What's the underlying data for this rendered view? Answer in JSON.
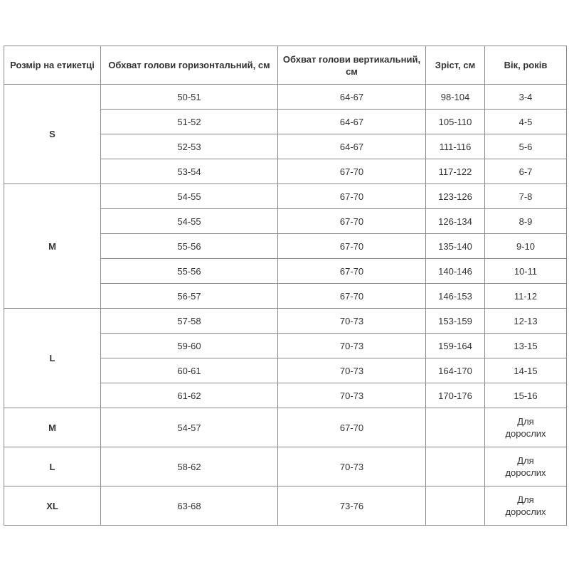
{
  "headers": [
    "Розмір на етикетці",
    "Обхват голови горизонтальний, см",
    "Обхват голови вертикальний, см",
    "Зріст, см",
    "Вік, років"
  ],
  "groups": [
    {
      "size": "S",
      "rows": [
        [
          "50-51",
          "64-67",
          "98-104",
          "3-4"
        ],
        [
          "51-52",
          "64-67",
          "105-110",
          "4-5"
        ],
        [
          "52-53",
          "64-67",
          "111-116",
          "5-6"
        ],
        [
          "53-54",
          "67-70",
          "117-122",
          "6-7"
        ]
      ]
    },
    {
      "size": "M",
      "rows": [
        [
          "54-55",
          "67-70",
          "123-126",
          "7-8"
        ],
        [
          "54-55",
          "67-70",
          "126-134",
          "8-9"
        ],
        [
          "55-56",
          "67-70",
          "135-140",
          "9-10"
        ],
        [
          "55-56",
          "67-70",
          "140-146",
          "10-11"
        ],
        [
          "56-57",
          "67-70",
          "146-153",
          "11-12"
        ]
      ]
    },
    {
      "size": "L",
      "rows": [
        [
          "57-58",
          "70-73",
          "153-159",
          "12-13"
        ],
        [
          "59-60",
          "70-73",
          "159-164",
          "13-15"
        ],
        [
          "60-61",
          "70-73",
          "164-170",
          "14-15"
        ],
        [
          "61-62",
          "70-73",
          "170-176",
          "15-16"
        ]
      ]
    },
    {
      "size": "M",
      "adult": true,
      "rows": [
        [
          "54-57",
          "67-70",
          "",
          "Для дорослих"
        ]
      ]
    },
    {
      "size": "L",
      "adult": true,
      "rows": [
        [
          "58-62",
          "70-73",
          "",
          "Для дорослих"
        ]
      ]
    },
    {
      "size": "XL",
      "adult": true,
      "rows": [
        [
          "63-68",
          "73-76",
          "",
          "Для дорослих"
        ]
      ]
    }
  ]
}
